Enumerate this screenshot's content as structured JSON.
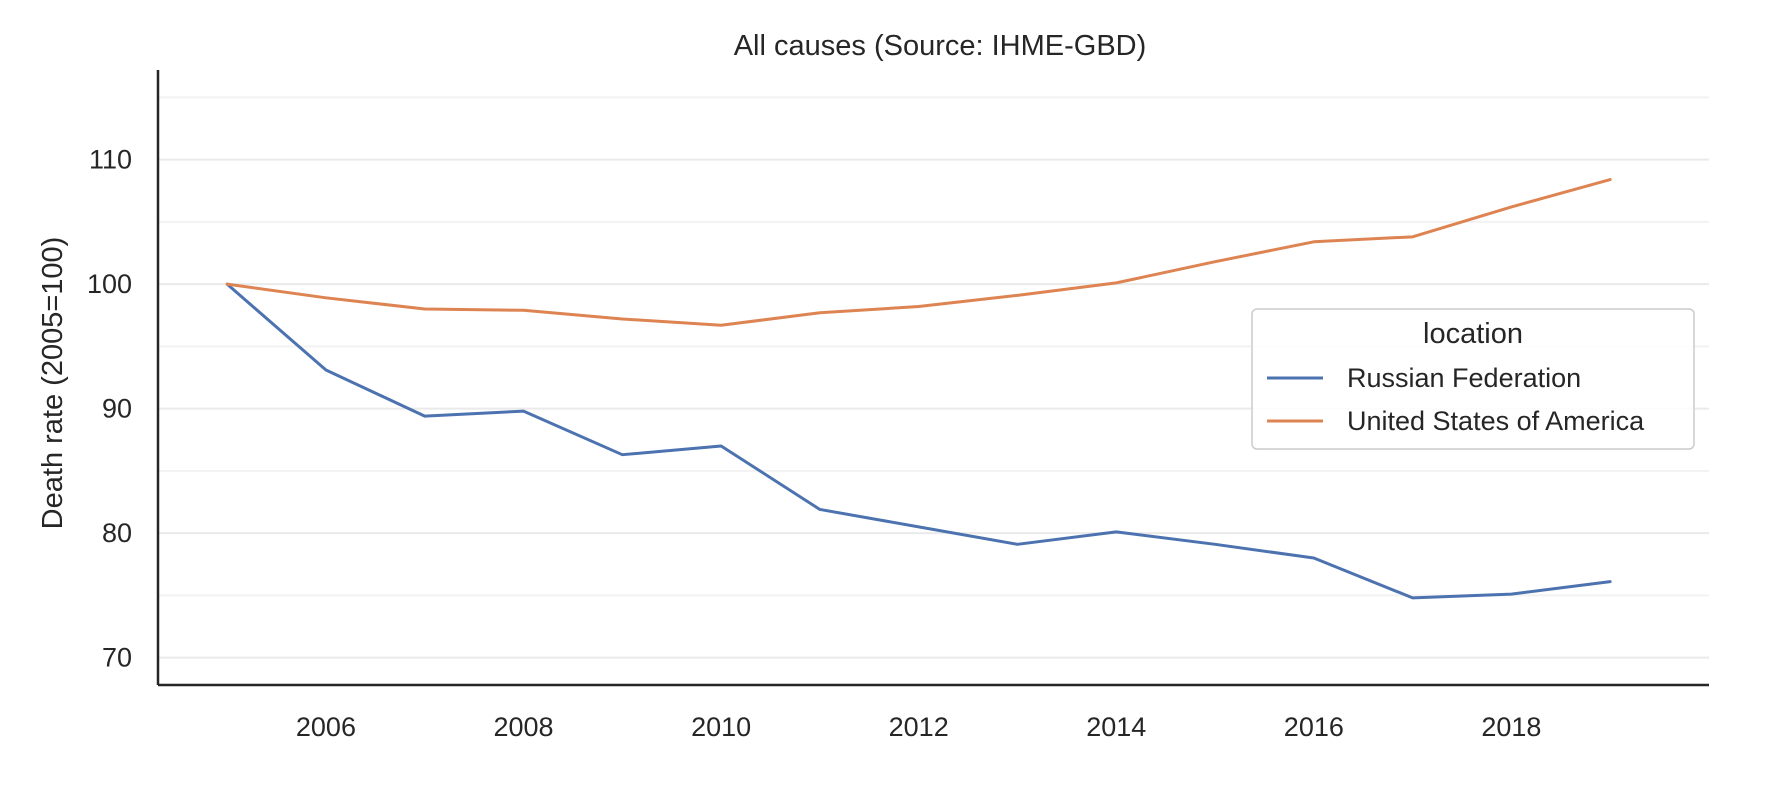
{
  "chart_data": {
    "type": "line",
    "title": "All causes (Source: IHME-GBD)",
    "xlabel": "",
    "ylabel": "Death rate (2005=100)",
    "xlim": [
      2004.3,
      2020.0
    ],
    "ylim": [
      67.8,
      117.2
    ],
    "x_ticks": [
      2006,
      2008,
      2010,
      2012,
      2014,
      2016,
      2018
    ],
    "y_ticks": [
      70,
      80,
      90,
      100,
      110
    ],
    "grid_minor_y": [
      75,
      85,
      95,
      105,
      115
    ],
    "grid": "horizontal",
    "legend": {
      "title": "location",
      "placement": "center-right"
    },
    "x": [
      2005,
      2006,
      2007,
      2008,
      2009,
      2010,
      2011,
      2012,
      2013,
      2014,
      2015,
      2016,
      2017,
      2018,
      2019
    ],
    "series": [
      {
        "name": "Russian Federation",
        "color": "#4c72b0",
        "values": [
          100.0,
          93.1,
          89.4,
          89.8,
          86.3,
          87.0,
          81.9,
          80.5,
          79.1,
          80.1,
          79.1,
          78.0,
          74.8,
          75.1,
          76.1
        ]
      },
      {
        "name": "United States of America",
        "color": "#dd8452",
        "values": [
          100.0,
          98.9,
          98.0,
          97.9,
          97.2,
          96.7,
          97.7,
          98.2,
          99.1,
          100.1,
          101.8,
          103.4,
          103.8,
          106.2,
          108.4
        ]
      }
    ]
  }
}
